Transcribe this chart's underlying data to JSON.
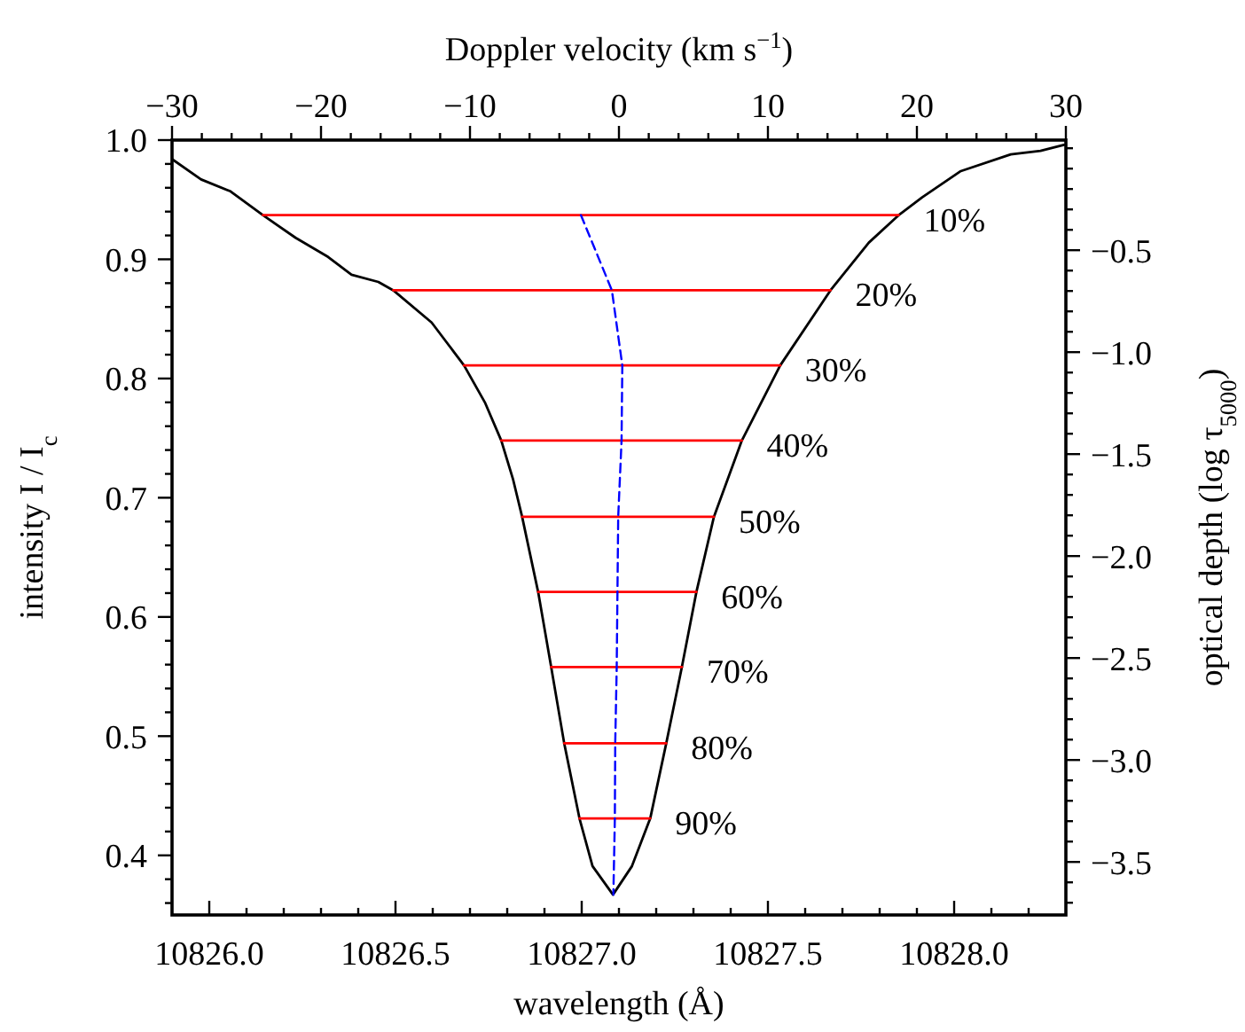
{
  "chart_data": {
    "type": "line",
    "xlabel": "wavelength (Å)",
    "ylabel": "intensity I / I$_{c}$",
    "y2label": "optical depth (log τ$_{5000}$)",
    "x2label": "Doppler velocity (km s$^{−1}$)",
    "xlim": [
      10825.9,
      10828.3
    ],
    "xticks": [
      {
        "value": 10826.0,
        "label": "10826.0"
      },
      {
        "value": 10826.1,
        "label": null
      },
      {
        "value": 10826.2,
        "label": null
      },
      {
        "value": 10826.3,
        "label": null
      },
      {
        "value": 10826.4,
        "label": null
      },
      {
        "value": 10826.5,
        "label": "10826.5"
      },
      {
        "value": 10826.6,
        "label": null
      },
      {
        "value": 10826.7,
        "label": null
      },
      {
        "value": 10826.8,
        "label": null
      },
      {
        "value": 10826.9,
        "label": null
      },
      {
        "value": 10827.0,
        "label": "10827.0"
      },
      {
        "value": 10827.1,
        "label": null
      },
      {
        "value": 10827.2,
        "label": null
      },
      {
        "value": 10827.3,
        "label": null
      },
      {
        "value": 10827.4,
        "label": null
      },
      {
        "value": 10827.5,
        "label": "10827.5"
      },
      {
        "value": 10827.6,
        "label": null
      },
      {
        "value": 10827.7,
        "label": null
      },
      {
        "value": 10827.8,
        "label": null
      },
      {
        "value": 10827.9,
        "label": null
      },
      {
        "value": 10828.0,
        "label": "10828.0"
      },
      {
        "value": 10828.1,
        "label": null
      },
      {
        "value": 10828.2,
        "label": null
      }
    ],
    "x2lim": [
      -30,
      30
    ],
    "x2ticks": [
      {
        "value": -30,
        "label": "−30"
      },
      {
        "value": -28,
        "label": null
      },
      {
        "value": -26,
        "label": null
      },
      {
        "value": -24,
        "label": null
      },
      {
        "value": -22,
        "label": null
      },
      {
        "value": -20,
        "label": "−20"
      },
      {
        "value": -18,
        "label": null
      },
      {
        "value": -16,
        "label": null
      },
      {
        "value": -14,
        "label": null
      },
      {
        "value": -12,
        "label": null
      },
      {
        "value": -10,
        "label": "−10"
      },
      {
        "value": -8,
        "label": null
      },
      {
        "value": -6,
        "label": null
      },
      {
        "value": -4,
        "label": null
      },
      {
        "value": -2,
        "label": null
      },
      {
        "value": 0,
        "label": "0"
      },
      {
        "value": 2,
        "label": null
      },
      {
        "value": 4,
        "label": null
      },
      {
        "value": 6,
        "label": null
      },
      {
        "value": 8,
        "label": null
      },
      {
        "value": 10,
        "label": "10"
      },
      {
        "value": 12,
        "label": null
      },
      {
        "value": 14,
        "label": null
      },
      {
        "value": 16,
        "label": null
      },
      {
        "value": 18,
        "label": null
      },
      {
        "value": 20,
        "label": "20"
      },
      {
        "value": 22,
        "label": null
      },
      {
        "value": 24,
        "label": null
      },
      {
        "value": 26,
        "label": null
      },
      {
        "value": 28,
        "label": null
      },
      {
        "value": 30,
        "label": "30"
      }
    ],
    "ylim": [
      0.35,
      1.0
    ],
    "yticks": [
      {
        "value": 0.36,
        "label": null
      },
      {
        "value": 0.38,
        "label": null
      },
      {
        "value": 0.4,
        "label": "0.4"
      },
      {
        "value": 0.42,
        "label": null
      },
      {
        "value": 0.44,
        "label": null
      },
      {
        "value": 0.46,
        "label": null
      },
      {
        "value": 0.48,
        "label": null
      },
      {
        "value": 0.5,
        "label": "0.5"
      },
      {
        "value": 0.52,
        "label": null
      },
      {
        "value": 0.54,
        "label": null
      },
      {
        "value": 0.56,
        "label": null
      },
      {
        "value": 0.58,
        "label": null
      },
      {
        "value": 0.6,
        "label": "0.6"
      },
      {
        "value": 0.62,
        "label": null
      },
      {
        "value": 0.64,
        "label": null
      },
      {
        "value": 0.66,
        "label": null
      },
      {
        "value": 0.68,
        "label": null
      },
      {
        "value": 0.7,
        "label": "0.7"
      },
      {
        "value": 0.72,
        "label": null
      },
      {
        "value": 0.74,
        "label": null
      },
      {
        "value": 0.76,
        "label": null
      },
      {
        "value": 0.78,
        "label": null
      },
      {
        "value": 0.8,
        "label": "0.8"
      },
      {
        "value": 0.82,
        "label": null
      },
      {
        "value": 0.84,
        "label": null
      },
      {
        "value": 0.86,
        "label": null
      },
      {
        "value": 0.88,
        "label": null
      },
      {
        "value": 0.9,
        "label": "0.9"
      },
      {
        "value": 0.92,
        "label": null
      },
      {
        "value": 0.94,
        "label": null
      },
      {
        "value": 0.96,
        "label": null
      },
      {
        "value": 0.98,
        "label": null
      },
      {
        "value": 1.0,
        "label": "1.0"
      }
    ],
    "y2lim": [
      -3.76,
      0.04
    ],
    "y2ticks": [
      {
        "value": -3.7,
        "label": null
      },
      {
        "value": -3.6,
        "label": null
      },
      {
        "value": -3.5,
        "label": "−3.5"
      },
      {
        "value": -3.4,
        "label": null
      },
      {
        "value": -3.3,
        "label": null
      },
      {
        "value": -3.2,
        "label": null
      },
      {
        "value": -3.1,
        "label": null
      },
      {
        "value": -3.0,
        "label": "−3.0"
      },
      {
        "value": -2.9,
        "label": null
      },
      {
        "value": -2.8,
        "label": null
      },
      {
        "value": -2.7,
        "label": null
      },
      {
        "value": -2.6,
        "label": null
      },
      {
        "value": -2.5,
        "label": "−2.5"
      },
      {
        "value": -2.4,
        "label": null
      },
      {
        "value": -2.3,
        "label": null
      },
      {
        "value": -2.2,
        "label": null
      },
      {
        "value": -2.1,
        "label": null
      },
      {
        "value": -2.0,
        "label": "−2.0"
      },
      {
        "value": -1.9,
        "label": null
      },
      {
        "value": -1.8,
        "label": null
      },
      {
        "value": -1.7,
        "label": null
      },
      {
        "value": -1.6,
        "label": null
      },
      {
        "value": -1.5,
        "label": "−1.5"
      },
      {
        "value": -1.4,
        "label": null
      },
      {
        "value": -1.3,
        "label": null
      },
      {
        "value": -1.2,
        "label": null
      },
      {
        "value": -1.1,
        "label": null
      },
      {
        "value": -1.0,
        "label": "−1.0"
      },
      {
        "value": -0.9,
        "label": null
      },
      {
        "value": -0.8,
        "label": null
      },
      {
        "value": -0.7,
        "label": null
      },
      {
        "value": -0.6,
        "label": null
      },
      {
        "value": -0.5,
        "label": "−0.5"
      },
      {
        "value": -0.4,
        "label": null
      },
      {
        "value": -0.3,
        "label": null
      },
      {
        "value": -0.2,
        "label": null
      },
      {
        "value": -0.1,
        "label": null
      },
      {
        "value": 0.0,
        "label": null
      }
    ],
    "series": [
      {
        "color": "#000000",
        "x": [
          10825.9,
          10825.978,
          10826.057,
          10826.144,
          10826.232,
          10826.319,
          10826.382,
          10826.454,
          10826.494,
          10826.597,
          10826.684,
          10826.74,
          10826.784,
          10826.816,
          10826.84,
          10826.883,
          10826.918,
          10826.953,
          10826.994,
          10827.029,
          10827.084,
          10827.135,
          10827.184,
          10827.227,
          10827.269,
          10827.308,
          10827.355,
          10827.43,
          10827.533,
          10827.668,
          10827.771,
          10827.851,
          10827.914,
          10828.018,
          10828.152,
          10828.232,
          10828.295
        ],
        "values": [
          0.984,
          0.967,
          0.957,
          0.937,
          0.918,
          0.902,
          0.887,
          0.881,
          0.874,
          0.847,
          0.811,
          0.78,
          0.748,
          0.715,
          0.684,
          0.621,
          0.558,
          0.494,
          0.431,
          0.391,
          0.367,
          0.391,
          0.431,
          0.494,
          0.558,
          0.621,
          0.684,
          0.748,
          0.811,
          0.874,
          0.914,
          0.937,
          0.952,
          0.974,
          0.988,
          0.991,
          0.996
        ]
      },
      {
        "color": "#ff0000",
        "x": [
          10826.144,
          10827.851
        ],
        "values": [
          0.937,
          0.937
        ]
      },
      {
        "color": "#ff0000",
        "x": [
          10826.494,
          10827.668
        ],
        "values": [
          0.874,
          0.874
        ]
      },
      {
        "color": "#ff0000",
        "x": [
          10826.684,
          10827.533
        ],
        "values": [
          0.811,
          0.811
        ]
      },
      {
        "color": "#ff0000",
        "x": [
          10826.784,
          10827.43
        ],
        "values": [
          0.748,
          0.748
        ]
      },
      {
        "color": "#ff0000",
        "x": [
          10826.84,
          10827.355
        ],
        "values": [
          0.684,
          0.684
        ]
      },
      {
        "color": "#ff0000",
        "x": [
          10826.883,
          10827.308
        ],
        "values": [
          0.621,
          0.621
        ]
      },
      {
        "color": "#ff0000",
        "x": [
          10826.918,
          10827.269
        ],
        "values": [
          0.558,
          0.558
        ]
      },
      {
        "color": "#ff0000",
        "x": [
          10826.953,
          10827.227
        ],
        "values": [
          0.494,
          0.494
        ]
      },
      {
        "color": "#ff0000",
        "x": [
          10826.994,
          10827.184
        ],
        "values": [
          0.431,
          0.431
        ]
      },
      {
        "color": "#0000ff",
        "line_style": "dashed",
        "x": [
          10826.998,
          10827.081,
          10827.109,
          10827.107,
          10827.098,
          10827.096,
          10827.094,
          10827.09,
          10827.089,
          10827.085
        ],
        "values": [
          0.937,
          0.874,
          0.811,
          0.748,
          0.684,
          0.621,
          0.558,
          0.494,
          0.431,
          0.367
        ]
      }
    ],
    "annotations": [
      {
        "text": "10%",
        "x": 10827.851,
        "y": 0.937
      },
      {
        "text": "20%",
        "x": 10827.668,
        "y": 0.874
      },
      {
        "text": "30%",
        "x": 10827.533,
        "y": 0.811
      },
      {
        "text": "40%",
        "x": 10827.43,
        "y": 0.748
      },
      {
        "text": "50%",
        "x": 10827.355,
        "y": 0.684
      },
      {
        "text": "60%",
        "x": 10827.308,
        "y": 0.621
      },
      {
        "text": "70%",
        "x": 10827.269,
        "y": 0.558
      },
      {
        "text": "80%",
        "x": 10827.227,
        "y": 0.494
      },
      {
        "text": "90%",
        "x": 10827.184,
        "y": 0.431
      }
    ]
  }
}
